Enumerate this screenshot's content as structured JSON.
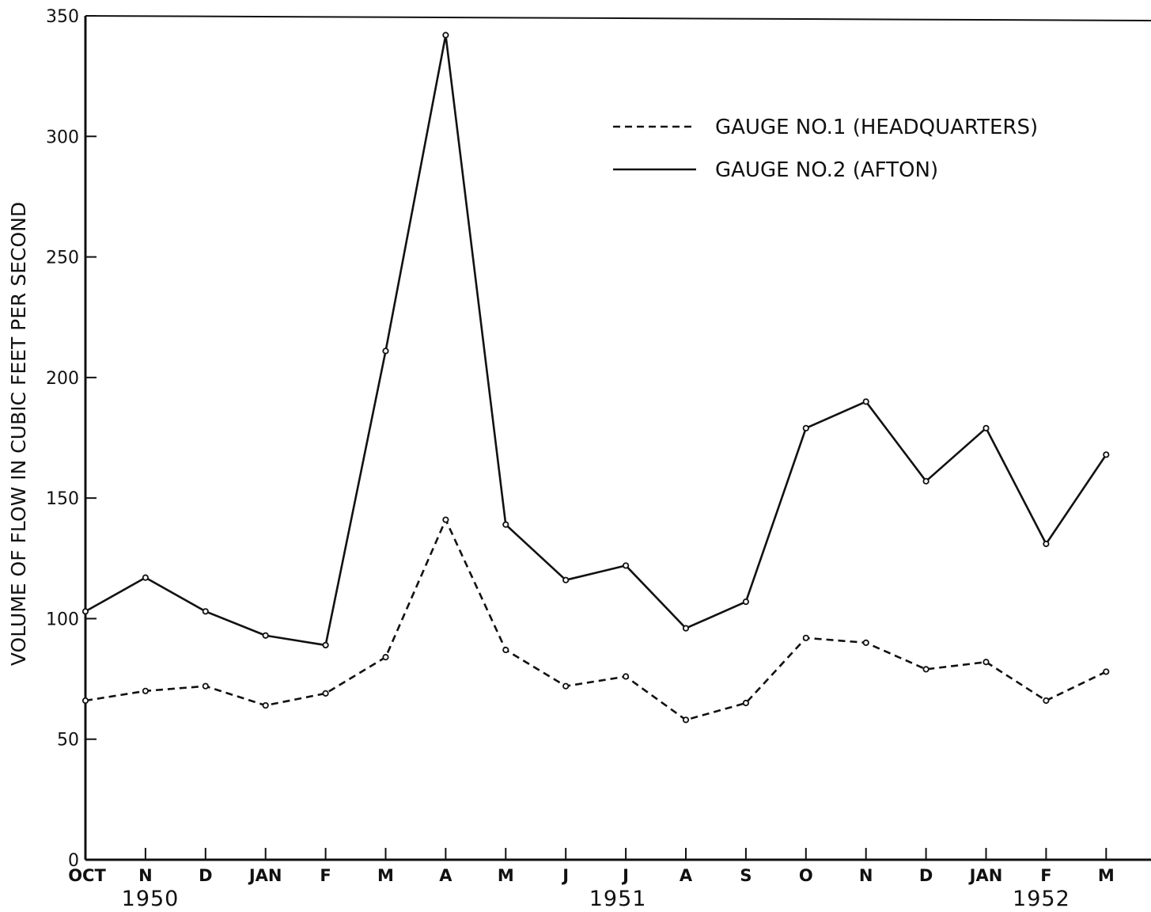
{
  "chart_data": {
    "type": "line",
    "title": "",
    "xlabel": "",
    "ylabel": "VOLUME OF FLOW IN CUBIC FEET PER SECOND",
    "ylim": [
      0,
      350
    ],
    "yticks": [
      "0",
      "50",
      "100",
      "150",
      "200",
      "250",
      "300",
      "350"
    ],
    "categories": [
      "OCT",
      "N",
      "D",
      "JAN",
      "F",
      "M",
      "A",
      "M",
      "J",
      "J",
      "A",
      "S",
      "O",
      "N",
      "D",
      "JAN",
      "F",
      "M"
    ],
    "year_labels": [
      {
        "text": "1950",
        "category_index": 0
      },
      {
        "text": "1951",
        "category_index": 9
      },
      {
        "text": "1952",
        "category_index": 16
      }
    ],
    "grid": false,
    "legend_position": "top-right",
    "series": [
      {
        "name": "GAUGE NO.1 (HEADQUARTERS)",
        "style": "dashed",
        "color": "#111111",
        "values": [
          66,
          70,
          72,
          64,
          69,
          84,
          141,
          87,
          72,
          76,
          58,
          65,
          92,
          90,
          79,
          82,
          66,
          78
        ]
      },
      {
        "name": "GAUGE NO.2 (AFTON)",
        "style": "solid",
        "color": "#111111",
        "values": [
          103,
          117,
          103,
          93,
          89,
          211,
          342,
          139,
          116,
          122,
          96,
          107,
          179,
          190,
          157,
          179,
          131,
          168
        ]
      }
    ]
  }
}
